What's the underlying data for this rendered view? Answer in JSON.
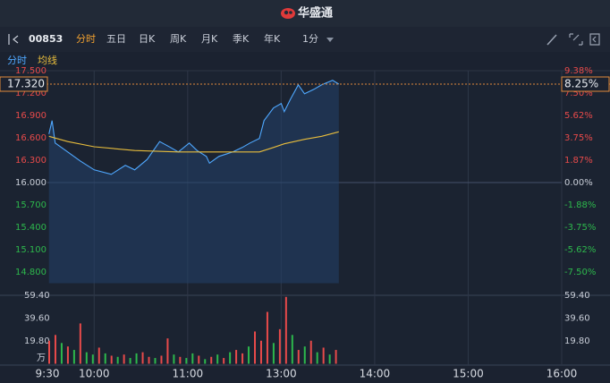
{
  "header": {
    "brand": "华盛通"
  },
  "toolbar": {
    "code": "00853",
    "tabs": [
      "分时",
      "五日",
      "日K",
      "周K",
      "月K",
      "季K",
      "年K"
    ],
    "interval": "1分"
  },
  "chart_data": {
    "type": "line",
    "xlim": [
      0,
      330
    ],
    "xticks": [
      {
        "value": 0,
        "label": "9:30"
      },
      {
        "value": 30,
        "label": "10:00"
      },
      {
        "value": 90,
        "label": "11:00"
      },
      {
        "value": 150,
        "label": "13:00"
      },
      {
        "value": 210,
        "label": "14:00"
      },
      {
        "value": 270,
        "label": "15:00"
      },
      {
        "value": 330,
        "label": "16:00"
      }
    ],
    "ylim": [
      14.65,
      17.5
    ],
    "yticks": [
      {
        "value": 17.5,
        "label": "17.500"
      },
      {
        "value": 17.2,
        "label": "17.200"
      },
      {
        "value": 16.9,
        "label": "16.900"
      },
      {
        "value": 16.6,
        "label": "16.600"
      },
      {
        "value": 16.3,
        "label": "16.300"
      },
      {
        "value": 16.0,
        "label": "16.000"
      },
      {
        "value": 15.7,
        "label": "15.700"
      },
      {
        "value": 15.4,
        "label": "15.400"
      },
      {
        "value": 15.1,
        "label": "15.100"
      },
      {
        "value": 14.8,
        "label": "14.800"
      }
    ],
    "y2lim": [
      -8.4375,
      9.375
    ],
    "y2ticks": [
      {
        "value": 9.38,
        "label": "9.38%"
      },
      {
        "value": 7.5,
        "label": "7.50%"
      },
      {
        "value": 5.62,
        "label": "5.62%"
      },
      {
        "value": 3.75,
        "label": "3.75%"
      },
      {
        "value": 1.87,
        "label": "1.87%"
      },
      {
        "value": 0,
        "label": "0.00%"
      },
      {
        "value": -1.88,
        "label": "-1.88%"
      },
      {
        "value": -3.75,
        "label": "-3.75%"
      },
      {
        "value": -5.62,
        "label": "-5.62%"
      },
      {
        "value": -7.5,
        "label": "-7.50%"
      }
    ],
    "series": [
      {
        "name": "分时",
        "color": "#4fa8ff",
        "x": [
          1,
          3,
          5,
          13,
          21,
          30,
          41,
          50,
          56,
          64,
          72,
          79,
          84,
          91,
          96,
          102,
          104,
          110,
          119,
          125,
          130,
          136,
          139,
          145,
          150,
          152,
          156,
          161,
          165,
          171,
          176,
          183,
          187
        ],
        "values": [
          16.65,
          16.83,
          16.53,
          16.41,
          16.29,
          16.17,
          16.11,
          16.23,
          16.17,
          16.31,
          16.55,
          16.47,
          16.41,
          16.53,
          16.43,
          16.35,
          16.26,
          16.35,
          16.41,
          16.47,
          16.53,
          16.59,
          16.83,
          17.0,
          17.06,
          16.95,
          17.12,
          17.31,
          17.19,
          17.25,
          17.31,
          17.37,
          17.32
        ]
      },
      {
        "name": "均线",
        "color": "#e8bd3c",
        "x": [
          1,
          13,
          30,
          56,
          84,
          110,
          136,
          145,
          152,
          165,
          176,
          187
        ],
        "values": [
          16.62,
          16.55,
          16.48,
          16.43,
          16.41,
          16.41,
          16.41,
          16.47,
          16.52,
          16.58,
          16.62,
          16.68
        ]
      }
    ],
    "current": {
      "price": {
        "value": 17.32,
        "label": "17.320"
      },
      "change": {
        "value": 8.25,
        "label": "8.25%"
      }
    },
    "volume": {
      "unit": "万",
      "ylim": [
        0,
        59.4
      ],
      "yticks": [
        {
          "value": 59.4,
          "label": "59.40"
        },
        {
          "value": 39.6,
          "label": "39.60"
        },
        {
          "value": 19.8,
          "label": "19.80"
        }
      ],
      "x": [
        0,
        4,
        8,
        12,
        16,
        20,
        24,
        28,
        32,
        36,
        40,
        44,
        48,
        52,
        56,
        60,
        64,
        68,
        72,
        76,
        80,
        84,
        88,
        92,
        96,
        100,
        104,
        108,
        112,
        116,
        120,
        124,
        128,
        132,
        136,
        140,
        144,
        148,
        152,
        156,
        160,
        164,
        168,
        172,
        176,
        180,
        184
      ],
      "values": [
        20,
        25,
        18,
        15,
        12,
        35,
        10,
        8,
        14,
        9,
        7,
        6,
        8,
        5,
        9,
        10,
        6,
        5,
        7,
        22,
        8,
        6,
        5,
        9,
        7,
        4,
        6,
        8,
        5,
        10,
        12,
        9,
        15,
        28,
        20,
        45,
        18,
        30,
        58,
        25,
        12,
        15,
        20,
        10,
        14,
        8,
        12
      ],
      "colors": [
        "#e84a4a",
        "#e84a4a",
        "#2db84c",
        "#e84a4a",
        "#2db84c",
        "#e84a4a",
        "#2db84c",
        "#2db84c",
        "#e84a4a",
        "#2db84c",
        "#e84a4a",
        "#2db84c",
        "#e84a4a",
        "#2db84c",
        "#2db84c",
        "#e84a4a",
        "#e84a4a",
        "#2db84c",
        "#e84a4a",
        "#e84a4a",
        "#2db84c",
        "#e84a4a",
        "#2db84c",
        "#2db84c",
        "#e84a4a",
        "#2db84c",
        "#e84a4a",
        "#2db84c",
        "#e84a4a",
        "#2db84c",
        "#e84a4a",
        "#e84a4a",
        "#2db84c",
        "#e84a4a",
        "#e84a4a",
        "#e84a4a",
        "#2db84c",
        "#e84a4a",
        "#e84a4a",
        "#2db84c",
        "#e84a4a",
        "#2db84c",
        "#e84a4a",
        "#2db84c",
        "#e84a4a",
        "#2db84c",
        "#e84a4a"
      ]
    }
  }
}
